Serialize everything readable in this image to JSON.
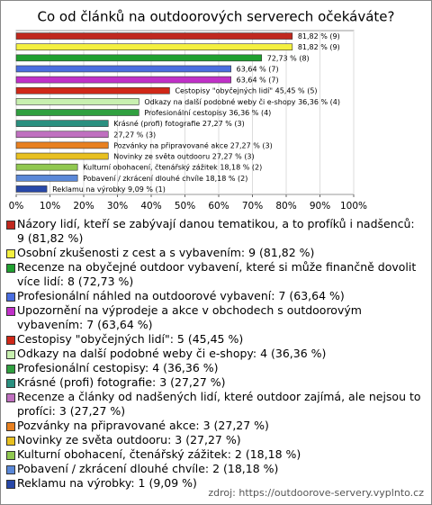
{
  "chart_data": {
    "type": "bar",
    "orientation": "horizontal",
    "title": "Co od článků na outdoorových serverech očekáváte?",
    "categories": [
      "Názory lidí, kteří se zabývají danou tematikou, a to profíků i nadšenců: 9 (81,82 %)",
      "Osobní zkušenosti z cest a s vybavením: 9 (81,82 %)",
      "Recenze na obyčejné outdoor vybavení, které si může finančně dovolit více lidí: 8 (72,73 %)",
      "Profesionální náhled na outdoorové vybavení: 7 (63,64 %)",
      "Upozornění na výprodeje a akce v obchodech s outdoorovým vybavením: 7 (63,64 %)",
      "Cestopisy \"obyčejných lidí\": 5 (45,45 %)",
      "Odkazy na další podobné weby či e-shopy: 4 (36,36 %)",
      "Profesionální cestopisy: 4 (36,36 %)",
      "Krásné (profi) fotografie: 3 (27,27 %)",
      "Recenze a články od nadšených lidí, které outdoor zajímá, ale nejsou to profíci: 3 (27,27 %)",
      "Pozvánky na připravované akce: 3 (27,27 %)",
      "Novinky ze světa outdooru: 3 (27,27 %)",
      "Kulturní obohacení, čtenářský zážitek: 2 (18,18 %)",
      "Pobavení / zkrácení dlouhé chvíle: 2 (18,18 %)",
      "Reklamu na výrobky: 1 (9,09 %)"
    ],
    "values": [
      81.82,
      81.82,
      72.73,
      63.64,
      63.64,
      45.45,
      36.36,
      36.36,
      27.27,
      27.27,
      27.27,
      27.27,
      18.18,
      18.18,
      9.09
    ],
    "value_labels": [
      "81,82 % (9)",
      "81,82 % (9)",
      "72,73 % (8)",
      "63,64 % (7)",
      "63,64 % (7)",
      "Cestopisy \"obyčejných lidí\" 45,45 % (5)",
      "Odkazy na další podobné weby či e-shopy 36,36 % (4)",
      "Profesionální cestopisy 36,36 % (4)",
      "Krásné (profi) fotografie 27,27 % (3)",
      "27,27 % (3)",
      "Pozvánky na připravované akce 27,27 % (3)",
      "Novinky ze světa outdooru 27,27 % (3)",
      "Kulturní obohacení, čtenářský zážitek 18,18 % (2)",
      "Pobavení / zkrácení dlouhé chvíle 18,18 % (2)",
      "Reklamu na výrobky 9,09 % (1)"
    ],
    "colors": [
      "#c0281e",
      "#f4f040",
      "#20a030",
      "#4a6ee0",
      "#c030c8",
      "#d02818",
      "#c8f0b0",
      "#30a040",
      "#2a9080",
      "#c070c0",
      "#e88020",
      "#e8c020",
      "#90c850",
      "#5a88d8",
      "#2848a8"
    ],
    "xlim": [
      0,
      100
    ],
    "xticks": [
      {
        "value": 0,
        "label": "0%"
      },
      {
        "value": 10,
        "label": "10%"
      },
      {
        "value": 20,
        "label": "20%"
      },
      {
        "value": 30,
        "label": "30%"
      },
      {
        "value": 40,
        "label": "40%"
      },
      {
        "value": 50,
        "label": "50%"
      },
      {
        "value": 60,
        "label": "60%"
      },
      {
        "value": 70,
        "label": "70%"
      },
      {
        "value": 80,
        "label": "80%"
      },
      {
        "value": 90,
        "label": "90%"
      },
      {
        "value": 100,
        "label": "100%"
      }
    ],
    "grid": true,
    "source": "zdroj: https://outdoorove-servery.vyplnto.cz"
  }
}
